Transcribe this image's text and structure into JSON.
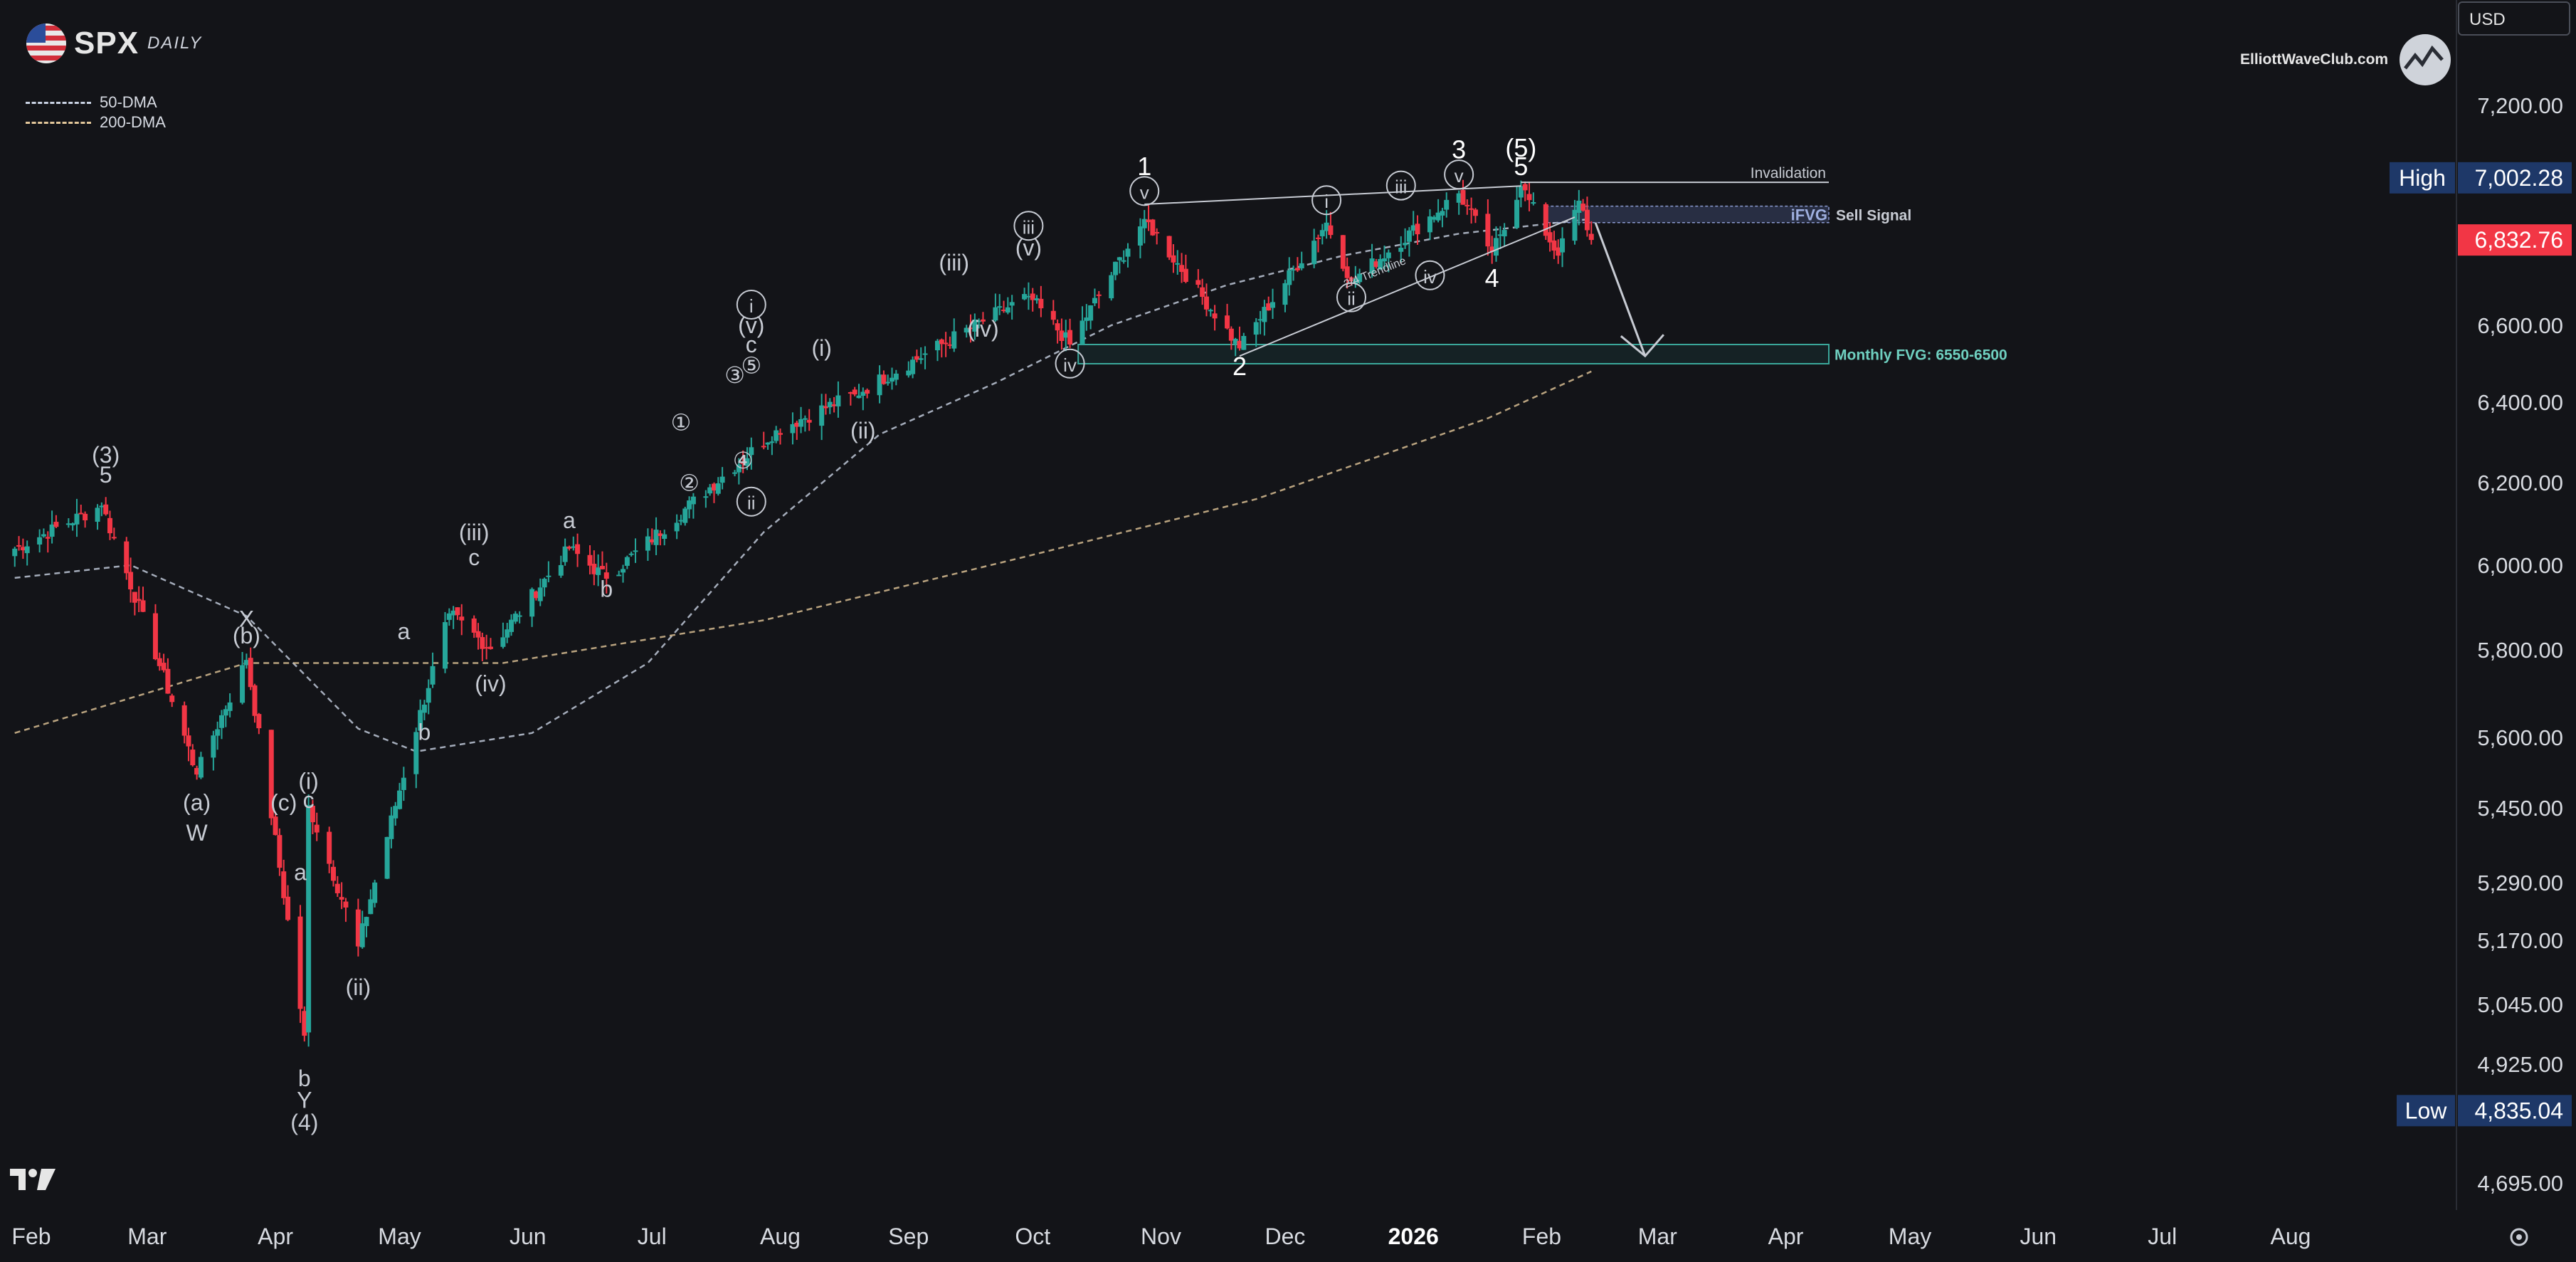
{
  "header": {
    "ticker": "SPX",
    "timeframe": "DAILY",
    "brand": "ElliottWaveClub.com",
    "currency": "USD"
  },
  "legend": [
    {
      "label": "50-DMA",
      "color": "#c9d2e3"
    },
    {
      "label": "200-DMA",
      "color": "#e3c79a"
    }
  ],
  "chart_data": {
    "type": "candlestick",
    "x_labels": [
      "Feb",
      "Mar",
      "Apr",
      "May",
      "Jun",
      "Jul",
      "Aug",
      "Sep",
      "Oct",
      "Nov",
      "Dec",
      "2026",
      "Feb",
      "Mar",
      "Apr",
      "May",
      "Jun",
      "Jul",
      "Aug"
    ],
    "y_ticks": [
      "7,200.00",
      "6,600.00",
      "6,400.00",
      "6,200.00",
      "6,000.00",
      "5,800.00",
      "5,600.00",
      "5,450.00",
      "5,290.00",
      "5,170.00",
      "5,045.00",
      "4,925.00",
      "4,695.00"
    ],
    "price_tags": {
      "high_label": "High",
      "high_value": "7,002.28",
      "last_value": "6,832.76",
      "low_label": "Low",
      "low_value": "4,835.04"
    },
    "colors": {
      "up": "#26a69a",
      "down": "#f23645",
      "bg": "#131418"
    },
    "key_prices": [
      [
        "2025-01-28",
        6040
      ],
      [
        "2025-02-18",
        6144
      ],
      [
        "2025-03-13",
        5521
      ],
      [
        "2025-03-25",
        5777
      ],
      [
        "2025-04-08",
        4982
      ],
      [
        "2025-04-09",
        5456
      ],
      [
        "2025-04-21",
        5158
      ],
      [
        "2025-05-13",
        5886
      ],
      [
        "2025-05-23",
        5802
      ],
      [
        "2025-06-11",
        6040
      ],
      [
        "2025-06-20",
        5968
      ],
      [
        "2025-07-31",
        6330
      ],
      [
        "2025-08-19",
        6420
      ],
      [
        "2025-09-30",
        6680
      ],
      [
        "2025-10-10",
        6550
      ],
      [
        "2025-10-28",
        6890
      ],
      [
        "2025-11-20",
        6540
      ],
      [
        "2025-12-11",
        6880
      ],
      [
        "2025-12-17",
        6720
      ],
      [
        "2026-01-12",
        6960
      ],
      [
        "2026-01-20",
        6800
      ],
      [
        "2026-01-27",
        6980
      ],
      [
        "2026-02-05",
        6790
      ],
      [
        "2026-02-10",
        6940
      ],
      [
        "2026-02-13",
        6832.76
      ]
    ],
    "dma50": [
      [
        "2025-01-28",
        5970
      ],
      [
        "2025-02-25",
        6000
      ],
      [
        "2025-03-25",
        5880
      ],
      [
        "2025-04-21",
        5620
      ],
      [
        "2025-05-05",
        5570
      ],
      [
        "2025-06-02",
        5610
      ],
      [
        "2025-06-30",
        5770
      ],
      [
        "2025-07-28",
        6080
      ],
      [
        "2025-08-25",
        6320
      ],
      [
        "2025-09-22",
        6450
      ],
      [
        "2025-10-20",
        6600
      ],
      [
        "2025-11-17",
        6710
      ],
      [
        "2025-12-15",
        6790
      ],
      [
        "2026-01-12",
        6850
      ],
      [
        "2026-02-13",
        6890
      ]
    ],
    "dma200": [
      [
        "2025-01-28",
        5610
      ],
      [
        "2025-03-25",
        5770
      ],
      [
        "2025-05-26",
        5770
      ],
      [
        "2025-07-28",
        5870
      ],
      [
        "2025-09-29",
        6020
      ],
      [
        "2025-11-24",
        6160
      ],
      [
        "2026-01-19",
        6360
      ],
      [
        "2026-02-13",
        6480
      ]
    ],
    "annotations": {
      "invalidation": "Invalidation",
      "sell_signal": "Sell Signal",
      "ifvg": "iFVG",
      "monthly_fvg": "Monthly FVG: 6550-6500",
      "trendline": "2/4 Trendline"
    },
    "wave_labels": [
      {
        "text": "(3)",
        "date": "2025-02-19",
        "price": 6250
      },
      {
        "text": "5",
        "date": "2025-02-19",
        "price": 6200
      },
      {
        "text": "(a)",
        "date": "2025-03-13",
        "price": 5445
      },
      {
        "text": "W",
        "date": "2025-03-13",
        "price": 5380
      },
      {
        "text": "X",
        "date": "2025-03-25",
        "price": 5855
      },
      {
        "text": "(b)",
        "date": "2025-03-25",
        "price": 5815
      },
      {
        "text": "(c)",
        "date": "2025-04-03",
        "price": 5445
      },
      {
        "text": "(i)",
        "date": "2025-04-09",
        "price": 5490
      },
      {
        "text": "c",
        "date": "2025-04-09",
        "price": 5450
      },
      {
        "text": "a",
        "date": "2025-04-07",
        "price": 5295
      },
      {
        "text": "b",
        "date": "2025-04-08",
        "price": 4882
      },
      {
        "text": "Y",
        "date": "2025-04-08",
        "price": 4840
      },
      {
        "text": "(4)",
        "date": "2025-04-08",
        "price": 4797
      },
      {
        "text": "(ii)",
        "date": "2025-04-21",
        "price": 5063
      },
      {
        "text": "a",
        "date": "2025-05-02",
        "price": 5825
      },
      {
        "text": "b",
        "date": "2025-05-07",
        "price": 5595
      },
      {
        "text": "(iii)",
        "date": "2025-05-19",
        "price": 6060
      },
      {
        "text": "c",
        "date": "2025-05-19",
        "price": 6000
      },
      {
        "text": "(iv)",
        "date": "2025-05-23",
        "price": 5705
      },
      {
        "text": "a",
        "date": "2025-06-11",
        "price": 6090
      },
      {
        "text": "b",
        "date": "2025-06-20",
        "price": 5925
      },
      {
        "text": "①",
        "date": "2025-07-08",
        "price": 6330
      },
      {
        "text": "②",
        "date": "2025-07-10",
        "price": 6180
      },
      {
        "text": "③",
        "date": "2025-07-21",
        "price": 6450
      },
      {
        "text": "④",
        "date": "2025-07-23",
        "price": 6235
      },
      {
        "text": "⑤",
        "date": "2025-07-25",
        "price": 6475
      },
      {
        "text": "c",
        "date": "2025-07-25",
        "price": 6530
      },
      {
        "text": "(v)",
        "date": "2025-07-25",
        "price": 6580
      },
      {
        "text": "i",
        "date": "2025-07-25",
        "price": 6635
      },
      {
        "text": "ii",
        "date": "2025-07-25",
        "price": 6135
      },
      {
        "text": "(i)",
        "date": "2025-08-11",
        "price": 6520
      },
      {
        "text": "(ii)",
        "date": "2025-08-21",
        "price": 6310
      },
      {
        "text": "(iii)",
        "date": "2025-09-12",
        "price": 6750
      },
      {
        "text": "(iv)",
        "date": "2025-09-19",
        "price": 6570
      },
      {
        "text": "(v)",
        "date": "2025-09-30",
        "price": 6790
      },
      {
        "text": "iii",
        "date": "2025-09-30",
        "price": 6850
      },
      {
        "text": "iv",
        "date": "2025-10-10",
        "price": 6480
      },
      {
        "text": "1",
        "date": "2025-10-28",
        "price": 7010
      },
      {
        "text": "v",
        "date": "2025-10-28",
        "price": 6945
      },
      {
        "text": "2",
        "date": "2025-11-20",
        "price": 6470
      },
      {
        "text": "i",
        "date": "2025-12-11",
        "price": 6920
      },
      {
        "text": "ii",
        "date": "2025-12-17",
        "price": 6655
      },
      {
        "text": "iii",
        "date": "2025-12-29",
        "price": 6960
      },
      {
        "text": "iv",
        "date": "2026-01-05",
        "price": 6715
      },
      {
        "text": "v",
        "date": "2026-01-12",
        "price": 6990
      },
      {
        "text": "3",
        "date": "2026-01-12",
        "price": 7055
      },
      {
        "text": "4",
        "date": "2026-01-20",
        "price": 6705
      },
      {
        "text": "(5)",
        "date": "2026-01-27",
        "price": 7060
      },
      {
        "text": "5",
        "date": "2026-01-27",
        "price": 7010
      }
    ]
  }
}
